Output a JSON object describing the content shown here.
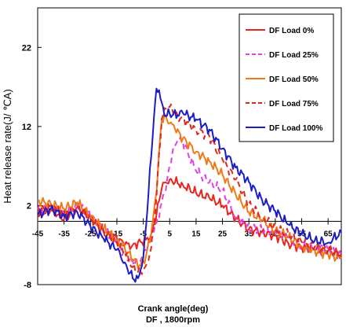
{
  "chart_data": {
    "type": "line",
    "title": "",
    "xlabel": "Crank angle(deg)",
    "xlabel_sub": "DF , 1800rpm",
    "ylabel": "Heat release rate(J/ ℃A)",
    "xlim": [
      -45,
      70
    ],
    "ylim": [
      -8,
      27
    ],
    "x_ticks": [
      -45,
      -35,
      -25,
      -15,
      -5,
      5,
      15,
      25,
      35,
      45,
      55,
      65
    ],
    "x_tick_labels": [
      "-45",
      "-35",
      "-25",
      "-15",
      "-5",
      "5",
      "15",
      "25",
      "35",
      "45",
      "55",
      "65"
    ],
    "y_ticks": [
      -8,
      2,
      12,
      22
    ],
    "y_tick_labels": [
      "-8",
      "2",
      "12",
      "22"
    ],
    "grid": false,
    "legend_position": "top-right",
    "series": [
      {
        "name": "DF Load 0%",
        "color": "#e8251f",
        "dash": "solid",
        "x": [
          -45,
          -40,
          -35,
          -30,
          -25,
          -20,
          -15,
          -12,
          -9,
          -6,
          -4,
          -2,
          0,
          1,
          2,
          3,
          5,
          10,
          15,
          20,
          25,
          30,
          35,
          40,
          45,
          50,
          55,
          60,
          65,
          70
        ],
        "y": [
          0.8,
          1.6,
          0.3,
          1.8,
          0.6,
          -1.4,
          -2.1,
          -3.0,
          -3.0,
          -2.6,
          -2.3,
          -1.6,
          0.8,
          2.6,
          4.2,
          4.9,
          5.3,
          4.6,
          3.6,
          3.0,
          2.0,
          0.4,
          -1.0,
          -1.4,
          -1.8,
          -2.8,
          -3.3,
          -3.6,
          -3.8,
          -4.2
        ]
      },
      {
        "name": "DF Load 25%",
        "color": "#e040e0",
        "dash": "dash",
        "x": [
          -45,
          -40,
          -35,
          -30,
          -25,
          -20,
          -15,
          -12,
          -9,
          -6,
          -4,
          -2,
          0,
          2,
          4,
          6,
          8,
          10,
          15,
          20,
          25,
          30,
          35,
          40,
          45,
          50,
          55,
          60,
          65,
          70
        ],
        "y": [
          1.3,
          1.8,
          1.2,
          2.0,
          0.6,
          -1.1,
          -2.4,
          -4.3,
          -5.0,
          -5.0,
          -3.6,
          -1.9,
          -0.2,
          2.4,
          5.2,
          8.6,
          10.2,
          10.0,
          6.4,
          4.9,
          3.9,
          0.5,
          -0.8,
          -1.1,
          -1.4,
          -2.0,
          -2.9,
          -3.2,
          -3.5,
          -4.3
        ]
      },
      {
        "name": "DF Load 50%",
        "color": "#f07a18",
        "dash": "solid",
        "x": [
          -45,
          -40,
          -35,
          -30,
          -25,
          -20,
          -15,
          -12,
          -9,
          -6,
          -4,
          -2,
          0,
          1,
          2,
          3,
          4,
          5,
          7,
          10,
          15,
          20,
          25,
          30,
          35,
          40,
          45,
          50,
          55,
          60,
          65,
          70
        ],
        "y": [
          2.6,
          2.2,
          1.6,
          2.4,
          0.5,
          -0.9,
          -2.3,
          -3.4,
          -4.8,
          -5.6,
          -4.4,
          -1.6,
          3.6,
          8.8,
          12.8,
          13.6,
          12.8,
          12.4,
          11.7,
          10.5,
          8.8,
          7.6,
          5.9,
          3.4,
          1.2,
          0.2,
          -1.2,
          -1.9,
          -3.2,
          -3.7,
          -4.2,
          -4.7
        ]
      },
      {
        "name": "DF Load 75%",
        "color": "#dd2a1c",
        "dash": "dash",
        "x": [
          -45,
          -40,
          -35,
          -30,
          -25,
          -20,
          -15,
          -12,
          -9,
          -6,
          -4,
          -2,
          0,
          1,
          2,
          4,
          6,
          8,
          10,
          15,
          20,
          25,
          30,
          35,
          40,
          45,
          50,
          55,
          60,
          65,
          70
        ],
        "y": [
          1.6,
          2.0,
          1.0,
          1.8,
          0.4,
          -1.2,
          -2.8,
          -4.0,
          -5.8,
          -6.4,
          -5.6,
          -3.4,
          3.0,
          8.6,
          13.0,
          14.6,
          14.1,
          13.4,
          12.9,
          11.6,
          10.8,
          7.8,
          5.3,
          2.2,
          0.6,
          -0.9,
          -1.7,
          -2.6,
          -3.2,
          -3.6,
          -4.2
        ]
      },
      {
        "name": "DF Load 100%",
        "color": "#1c1cc4",
        "dash": "solid",
        "x": [
          -45,
          -40,
          -35,
          -30,
          -25,
          -20,
          -15,
          -12,
          -9,
          -7,
          -5,
          -3,
          -1,
          0,
          1,
          2,
          3,
          5,
          8,
          10,
          15,
          20,
          25,
          30,
          35,
          40,
          45,
          50,
          55,
          60,
          65,
          70
        ],
        "y": [
          0.8,
          1.6,
          0.6,
          1.2,
          -0.6,
          -2.2,
          -3.6,
          -5.2,
          -7.2,
          -7.2,
          -4.6,
          3.6,
          13.0,
          16.8,
          16.6,
          15.0,
          13.4,
          13.6,
          13.4,
          13.7,
          12.9,
          11.6,
          9.2,
          6.8,
          5.0,
          2.7,
          1.3,
          -0.4,
          -1.6,
          -2.4,
          -2.7,
          -1.4
        ]
      }
    ]
  }
}
